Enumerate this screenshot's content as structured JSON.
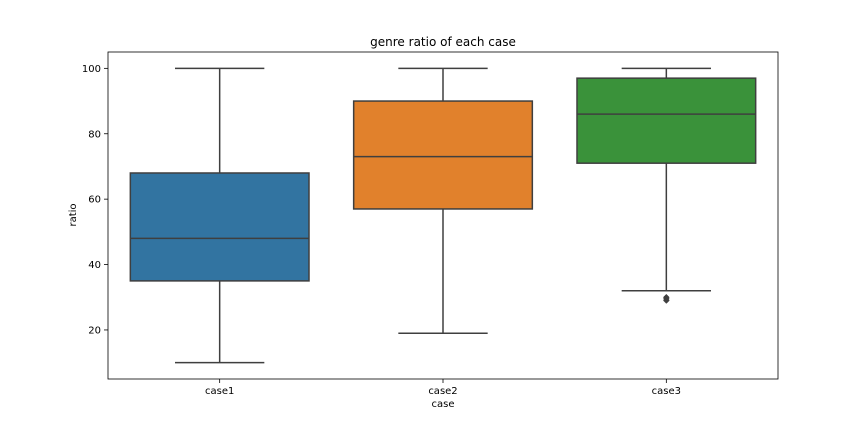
{
  "chart_data": {
    "type": "box",
    "title": "genre ratio of each case",
    "xlabel": "case",
    "ylabel": "ratio",
    "ylim": [
      5,
      105
    ],
    "yticks": [
      20,
      40,
      60,
      80,
      100
    ],
    "grid": false,
    "categories": [
      "case1",
      "case2",
      "case3"
    ],
    "boxes": [
      {
        "category": "case1",
        "whisker_low": 10,
        "q1": 35,
        "median": 48,
        "q3": 68,
        "whisker_high": 100,
        "outliers": [],
        "color": "#3274a1"
      },
      {
        "category": "case2",
        "whisker_low": 19,
        "q1": 57,
        "median": 73,
        "q3": 90,
        "whisker_high": 100,
        "outliers": [],
        "color": "#e1812c"
      },
      {
        "category": "case3",
        "whisker_low": 32,
        "q1": 71,
        "median": 86,
        "q3": 97,
        "whisker_high": 100,
        "outliers": [
          30,
          29.5,
          29
        ],
        "color": "#3a923a"
      }
    ]
  }
}
